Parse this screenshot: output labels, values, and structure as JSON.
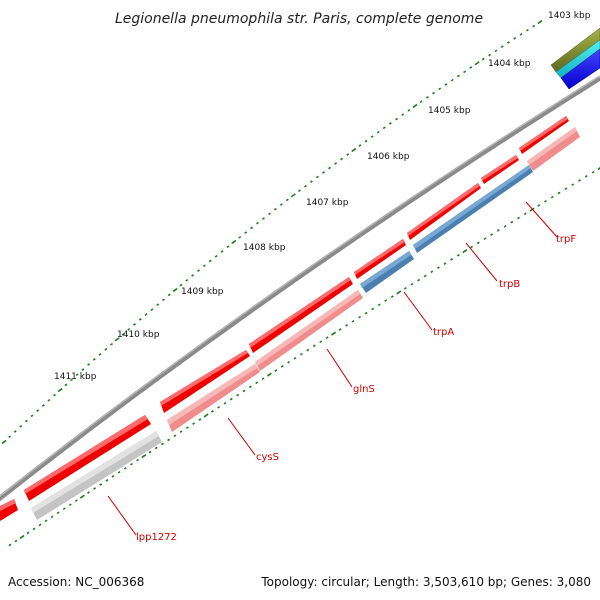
{
  "title": "Legionella pneumophila str. Paris, complete genome",
  "footer": {
    "accession": "Accession: NC_006368",
    "summary": "Topology: circular; Length: 3,503,610 bp; Genes: 3,080"
  },
  "scale_labels": [
    "1403 kbp",
    "1404 kbp",
    "1405 kbp",
    "1406 kbp",
    "1407 kbp",
    "1408 kbp",
    "1409 kbp",
    "1410 kbp",
    "1411 kbp"
  ],
  "gene_labels": [
    "trpF",
    "trpB",
    "trpA",
    "glnS",
    "cysS",
    "lpp1272"
  ],
  "colors": {
    "backbone": "#7a7a7a",
    "cds_forward": "#ee0000",
    "cds_reverse": "#f08c8c",
    "cds_blue": "#4a7fb0",
    "cds_gray": "#c4c4c4",
    "label": "#cc0000",
    "tick": "#1e7a1e"
  }
}
